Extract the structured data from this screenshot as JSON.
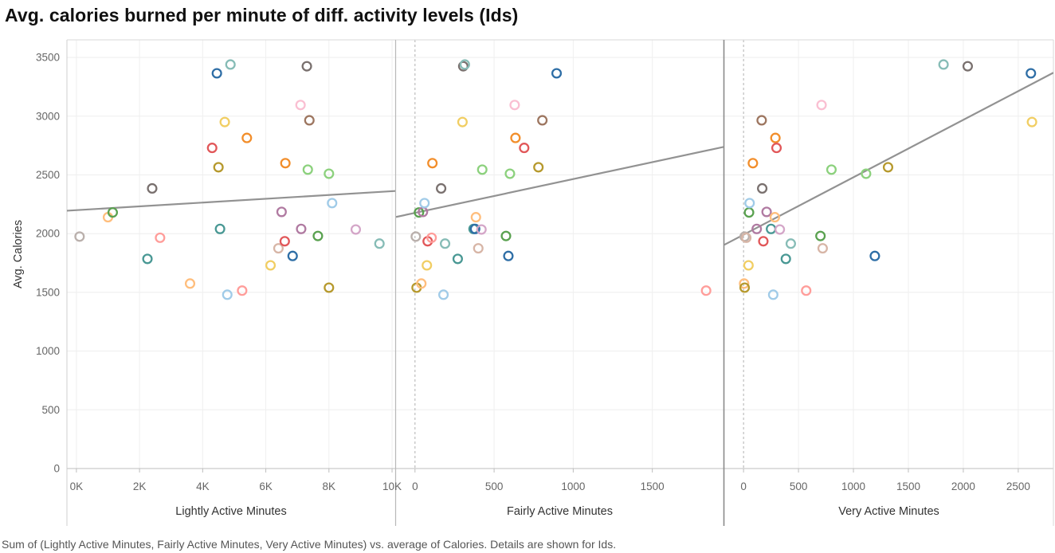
{
  "title": "Avg. calories burned per minute of diff. activity levels (Ids)",
  "caption": "Sum of (Lightly Active Minutes, Fairly Active Minutes, Very Active Minutes) vs. average of Calories.  Details are shown for Ids.",
  "chart_data": {
    "type": "scatter",
    "ylabel": "Avg. Calories",
    "ylim": [
      0,
      3650
    ],
    "y_ticks": [
      0,
      500,
      1000,
      1500,
      2000,
      2500,
      3000,
      3500
    ],
    "y_tick_labels": [
      "0",
      "500",
      "1000",
      "1500",
      "2000",
      "2500",
      "3000",
      "3500"
    ],
    "grid": true,
    "point_style": "hollow circles, one color per Id",
    "point_colors": [
      "#4e79a7",
      "#2e6ea6",
      "#76b7b2",
      "#499894",
      "#59a14f",
      "#8cd17d",
      "#b6992d",
      "#f1ce63",
      "#f28e2b",
      "#ffbe7d",
      "#e15759",
      "#ff9d9a",
      "#79706e",
      "#bab0ac",
      "#9d7660",
      "#d7b5a6",
      "#b07aa1",
      "#d4a6c8",
      "#fabfd2",
      "#86bcb6",
      "#a0cbe8"
    ],
    "panels": [
      {
        "xlabel": "Lightly Active Minutes",
        "xlim": [
          -300,
          10100
        ],
        "x_ticks": [
          0,
          2000,
          4000,
          6000,
          8000,
          10000
        ],
        "x_tick_labels": [
          "0K",
          "2K",
          "4K",
          "6K",
          "8K",
          "10K"
        ],
        "trend": {
          "x": [
            -300,
            10100
          ],
          "y": [
            2195,
            2363
          ]
        },
        "points": [
          {
            "x": 100,
            "y": 1975,
            "color": "#bab0ac"
          },
          {
            "x": 1000,
            "y": 2140,
            "color": "#ffbe7d"
          },
          {
            "x": 1150,
            "y": 2180,
            "color": "#59a14f"
          },
          {
            "x": 2250,
            "y": 1785,
            "color": "#499894"
          },
          {
            "x": 2400,
            "y": 2385,
            "color": "#79706e"
          },
          {
            "x": 2650,
            "y": 1965,
            "color": "#ff9d9a"
          },
          {
            "x": 3600,
            "y": 1575,
            "color": "#ffbe7d"
          },
          {
            "x": 4300,
            "y": 2730,
            "color": "#e15759"
          },
          {
            "x": 4450,
            "y": 3365,
            "color": "#2e6ea6"
          },
          {
            "x": 4500,
            "y": 2565,
            "color": "#b6992d"
          },
          {
            "x": 4550,
            "y": 2040,
            "color": "#499894"
          },
          {
            "x": 4700,
            "y": 2950,
            "color": "#f1ce63"
          },
          {
            "x": 4780,
            "y": 1480,
            "color": "#a0cbe8"
          },
          {
            "x": 4880,
            "y": 3440,
            "color": "#86bcb6"
          },
          {
            "x": 5250,
            "y": 1515,
            "color": "#ff9d9a"
          },
          {
            "x": 5400,
            "y": 2815,
            "color": "#f28e2b"
          },
          {
            "x": 6150,
            "y": 1730,
            "color": "#f1ce63"
          },
          {
            "x": 6400,
            "y": 1875,
            "color": "#d7b5a6"
          },
          {
            "x": 6500,
            "y": 2185,
            "color": "#b07aa1"
          },
          {
            "x": 6600,
            "y": 1935,
            "color": "#e15759"
          },
          {
            "x": 6620,
            "y": 2600,
            "color": "#f28e2b"
          },
          {
            "x": 6850,
            "y": 1810,
            "color": "#2e6ea6"
          },
          {
            "x": 7100,
            "y": 3095,
            "color": "#fabfd2"
          },
          {
            "x": 7120,
            "y": 2040,
            "color": "#b07aa1"
          },
          {
            "x": 7300,
            "y": 3425,
            "color": "#79706e"
          },
          {
            "x": 7330,
            "y": 2545,
            "color": "#8cd17d"
          },
          {
            "x": 7380,
            "y": 2965,
            "color": "#9d7660"
          },
          {
            "x": 7650,
            "y": 1980,
            "color": "#59a14f"
          },
          {
            "x": 8000,
            "y": 2510,
            "color": "#8cd17d"
          },
          {
            "x": 8000,
            "y": 1540,
            "color": "#b6992d"
          },
          {
            "x": 8100,
            "y": 2260,
            "color": "#a0cbe8"
          },
          {
            "x": 8850,
            "y": 2035,
            "color": "#d4a6c8"
          },
          {
            "x": 9600,
            "y": 1915,
            "color": "#86bcb6"
          }
        ]
      },
      {
        "xlabel": "Fairly Active Minutes",
        "xlim": [
          -120,
          1950
        ],
        "x_ticks": [
          0,
          500,
          1000,
          1500
        ],
        "x_tick_labels": [
          "0",
          "500",
          "1000",
          "1500"
        ],
        "zero_line": true,
        "trend": {
          "x": [
            -120,
            1950
          ],
          "y": [
            2142,
            2738
          ]
        },
        "points": [
          {
            "x": 5,
            "y": 1975,
            "color": "#bab0ac"
          },
          {
            "x": 10,
            "y": 1540,
            "color": "#b6992d"
          },
          {
            "x": 25,
            "y": 2180,
            "color": "#59a14f"
          },
          {
            "x": 40,
            "y": 1575,
            "color": "#ffbe7d"
          },
          {
            "x": 50,
            "y": 2185,
            "color": "#b07aa1"
          },
          {
            "x": 60,
            "y": 2260,
            "color": "#a0cbe8"
          },
          {
            "x": 75,
            "y": 1730,
            "color": "#f1ce63"
          },
          {
            "x": 80,
            "y": 1935,
            "color": "#e15759"
          },
          {
            "x": 105,
            "y": 1965,
            "color": "#ff9d9a"
          },
          {
            "x": 110,
            "y": 2600,
            "color": "#f28e2b"
          },
          {
            "x": 165,
            "y": 2385,
            "color": "#79706e"
          },
          {
            "x": 180,
            "y": 1480,
            "color": "#a0cbe8"
          },
          {
            "x": 190,
            "y": 1915,
            "color": "#86bcb6"
          },
          {
            "x": 270,
            "y": 1785,
            "color": "#499894"
          },
          {
            "x": 300,
            "y": 2950,
            "color": "#f1ce63"
          },
          {
            "x": 305,
            "y": 3425,
            "color": "#79706e"
          },
          {
            "x": 315,
            "y": 3440,
            "color": "#86bcb6"
          },
          {
            "x": 370,
            "y": 2040,
            "color": "#499894"
          },
          {
            "x": 380,
            "y": 2040,
            "color": "#2e6ea6"
          },
          {
            "x": 385,
            "y": 2140,
            "color": "#ffbe7d"
          },
          {
            "x": 400,
            "y": 1875,
            "color": "#d7b5a6"
          },
          {
            "x": 420,
            "y": 2035,
            "color": "#d4a6c8"
          },
          {
            "x": 425,
            "y": 2545,
            "color": "#8cd17d"
          },
          {
            "x": 575,
            "y": 1980,
            "color": "#59a14f"
          },
          {
            "x": 590,
            "y": 1810,
            "color": "#2e6ea6"
          },
          {
            "x": 600,
            "y": 2510,
            "color": "#8cd17d"
          },
          {
            "x": 630,
            "y": 3095,
            "color": "#fabfd2"
          },
          {
            "x": 635,
            "y": 2815,
            "color": "#f28e2b"
          },
          {
            "x": 690,
            "y": 2730,
            "color": "#e15759"
          },
          {
            "x": 780,
            "y": 2565,
            "color": "#b6992d"
          },
          {
            "x": 805,
            "y": 2965,
            "color": "#9d7660"
          },
          {
            "x": 895,
            "y": 3365,
            "color": "#2e6ea6"
          },
          {
            "x": 1840,
            "y": 1515,
            "color": "#ff9d9a"
          }
        ]
      },
      {
        "xlabel": "Very Active Minutes",
        "xlim": [
          -175,
          2820
        ],
        "x_ticks": [
          0,
          500,
          1000,
          1500,
          2000,
          2500
        ],
        "x_tick_labels": [
          "0",
          "500",
          "1000",
          "1500",
          "2000",
          "2500"
        ],
        "zero_line": true,
        "trend": {
          "x": [
            -175,
            2820
          ],
          "y": [
            1905,
            3370
          ]
        },
        "points": [
          {
            "x": 5,
            "y": 1575,
            "color": "#ffbe7d"
          },
          {
            "x": 10,
            "y": 1540,
            "color": "#b6992d"
          },
          {
            "x": 10,
            "y": 1975,
            "color": "#bab0ac"
          },
          {
            "x": 25,
            "y": 1965,
            "color": "#d7b5a6"
          },
          {
            "x": 45,
            "y": 1730,
            "color": "#f1ce63"
          },
          {
            "x": 50,
            "y": 2180,
            "color": "#59a14f"
          },
          {
            "x": 55,
            "y": 2260,
            "color": "#a0cbe8"
          },
          {
            "x": 85,
            "y": 2600,
            "color": "#f28e2b"
          },
          {
            "x": 120,
            "y": 2040,
            "color": "#b07aa1"
          },
          {
            "x": 165,
            "y": 2965,
            "color": "#9d7660"
          },
          {
            "x": 170,
            "y": 2385,
            "color": "#79706e"
          },
          {
            "x": 180,
            "y": 1935,
            "color": "#e15759"
          },
          {
            "x": 210,
            "y": 2185,
            "color": "#b07aa1"
          },
          {
            "x": 250,
            "y": 2040,
            "color": "#499894"
          },
          {
            "x": 270,
            "y": 1480,
            "color": "#a0cbe8"
          },
          {
            "x": 285,
            "y": 2140,
            "color": "#ffbe7d"
          },
          {
            "x": 290,
            "y": 2815,
            "color": "#f28e2b"
          },
          {
            "x": 300,
            "y": 2730,
            "color": "#e15759"
          },
          {
            "x": 330,
            "y": 2035,
            "color": "#d4a6c8"
          },
          {
            "x": 385,
            "y": 1785,
            "color": "#499894"
          },
          {
            "x": 430,
            "y": 1915,
            "color": "#86bcb6"
          },
          {
            "x": 570,
            "y": 1515,
            "color": "#ff9d9a"
          },
          {
            "x": 700,
            "y": 1980,
            "color": "#59a14f"
          },
          {
            "x": 710,
            "y": 3095,
            "color": "#fabfd2"
          },
          {
            "x": 720,
            "y": 1875,
            "color": "#d7b5a6"
          },
          {
            "x": 800,
            "y": 2545,
            "color": "#8cd17d"
          },
          {
            "x": 1115,
            "y": 2510,
            "color": "#8cd17d"
          },
          {
            "x": 1195,
            "y": 1810,
            "color": "#2e6ea6"
          },
          {
            "x": 1315,
            "y": 2565,
            "color": "#b6992d"
          },
          {
            "x": 1820,
            "y": 3440,
            "color": "#86bcb6"
          },
          {
            "x": 2040,
            "y": 3425,
            "color": "#79706e"
          },
          {
            "x": 2615,
            "y": 3365,
            "color": "#2e6ea6"
          },
          {
            "x": 2625,
            "y": 2950,
            "color": "#f1ce63"
          }
        ]
      }
    ]
  }
}
